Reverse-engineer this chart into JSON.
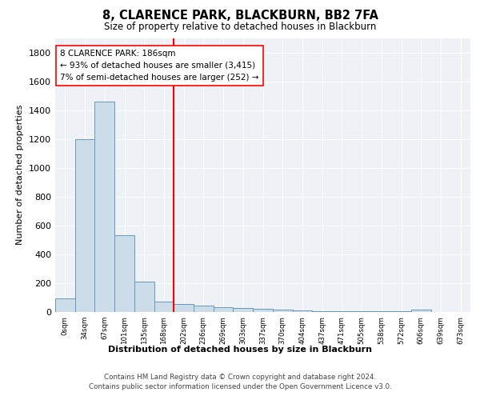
{
  "title": "8, CLARENCE PARK, BLACKBURN, BB2 7FA",
  "subtitle": "Size of property relative to detached houses in Blackburn",
  "xlabel": "Distribution of detached houses by size in Blackburn",
  "ylabel": "Number of detached properties",
  "bin_labels": [
    "0sqm",
    "34sqm",
    "67sqm",
    "101sqm",
    "135sqm",
    "168sqm",
    "202sqm",
    "236sqm",
    "269sqm",
    "303sqm",
    "337sqm",
    "370sqm",
    "404sqm",
    "437sqm",
    "471sqm",
    "505sqm",
    "538sqm",
    "572sqm",
    "606sqm",
    "639sqm",
    "673sqm"
  ],
  "bar_heights": [
    95,
    1200,
    1460,
    535,
    210,
    70,
    55,
    45,
    35,
    25,
    20,
    15,
    10,
    8,
    5,
    5,
    4,
    3,
    15,
    0,
    0
  ],
  "bar_color": "#ccdce8",
  "bar_edge_color": "#6699bb",
  "property_line_x": 5.5,
  "property_line_color": "red",
  "annotation_text": "8 CLARENCE PARK: 186sqm\n← 93% of detached houses are smaller (3,415)\n7% of semi-detached houses are larger (252) →",
  "annotation_box_color": "white",
  "annotation_box_edge": "red",
  "ylim": [
    0,
    1900
  ],
  "yticks": [
    0,
    200,
    400,
    600,
    800,
    1000,
    1200,
    1400,
    1600,
    1800
  ],
  "footer_line1": "Contains HM Land Registry data © Crown copyright and database right 2024.",
  "footer_line2": "Contains public sector information licensed under the Open Government Licence v3.0.",
  "plot_bg_color": "#eef2f7"
}
